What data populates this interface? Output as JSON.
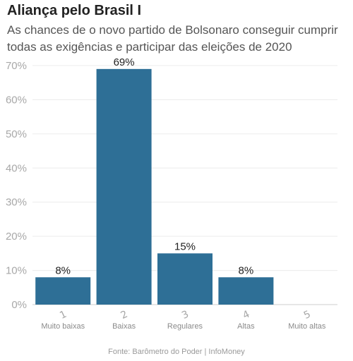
{
  "header": {
    "title": "Aliança pelo Brasil I",
    "subtitle": "As chances de o novo partido de Bolsonaro conseguir cumprir todas as exigências e participar das eleições de 2020"
  },
  "footer": {
    "source": "Fonte: Barômetro do Poder | InfoMoney"
  },
  "colors": {
    "bar": "#2e6f96",
    "grid": "#ececec",
    "axis": "#cccccc"
  },
  "chart_data": {
    "type": "bar",
    "categories": [
      "Muito baixas",
      "Baixas",
      "Regulares",
      "Altas",
      "Muito altas"
    ],
    "category_numbers": [
      "1",
      "2",
      "3",
      "4",
      "5"
    ],
    "values": [
      8,
      69,
      15,
      8,
      0
    ],
    "data_labels": [
      "8%",
      "69%",
      "15%",
      "8%",
      ""
    ],
    "yticks": [
      "0%",
      "10%",
      "20%",
      "30%",
      "40%",
      "50%",
      "60%",
      "70%"
    ],
    "ylim": [
      0,
      70
    ],
    "grid": true,
    "legend": "none"
  }
}
